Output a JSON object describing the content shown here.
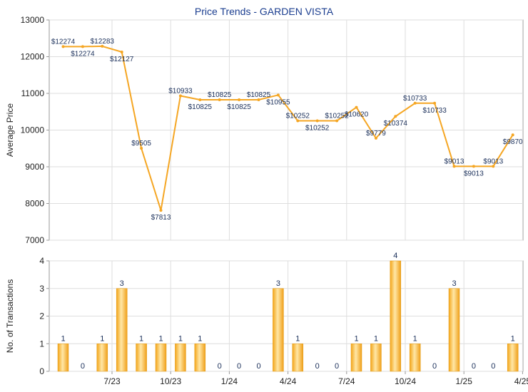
{
  "chart_data": [
    {
      "type": "line",
      "title": "Price Trends - GARDEN VISTA",
      "ylabel": "Average Price",
      "ylim": [
        7000,
        13000
      ],
      "yticks": [
        7000,
        8000,
        9000,
        10000,
        11000,
        12000,
        13000
      ],
      "grid": true,
      "color": "#f5a623",
      "x": [
        0,
        1,
        2,
        3,
        4,
        5,
        6,
        7,
        8,
        9,
        10,
        11,
        12,
        13,
        14,
        15,
        16,
        17,
        18,
        19,
        20,
        21,
        22,
        23
      ],
      "values": [
        12274,
        12274,
        12283,
        12127,
        9505,
        7813,
        10933,
        10825,
        10825,
        10825,
        10825,
        10955,
        10252,
        10252,
        10252,
        10620,
        9779,
        10374,
        10733,
        10733,
        9013,
        9013,
        9013,
        9870
      ],
      "labels": [
        "$12274",
        "$12274",
        "$12283",
        "$12127",
        "$9505",
        "$7813",
        "$10933",
        "$10825",
        "$10825",
        "$10825",
        "$10825",
        "$10955",
        "$10252",
        "$10252",
        "$10252",
        "$10620",
        "$9779",
        "$10374",
        "$10733",
        "$10733",
        "$9013",
        "$9013",
        "$9013",
        "$9870"
      ]
    },
    {
      "type": "bar",
      "ylabel": "No. of Transactions",
      "ylim": [
        0,
        4
      ],
      "yticks": [
        0,
        1,
        2,
        3,
        4
      ],
      "grid": true,
      "color": "#f5a623",
      "values": [
        1,
        0,
        1,
        3,
        1,
        1,
        1,
        1,
        0,
        0,
        0,
        3,
        1,
        0,
        0,
        1,
        1,
        4,
        1,
        0,
        3,
        0,
        0,
        1
      ],
      "x_tick_labels": [
        "7/23",
        "10/23",
        "1/24",
        "4/24",
        "7/24",
        "10/24",
        "1/25",
        "4/25"
      ],
      "x_tick_positions": [
        2.5,
        5.5,
        8.5,
        11.5,
        14.5,
        17.5,
        20.5,
        23.5
      ]
    }
  ]
}
